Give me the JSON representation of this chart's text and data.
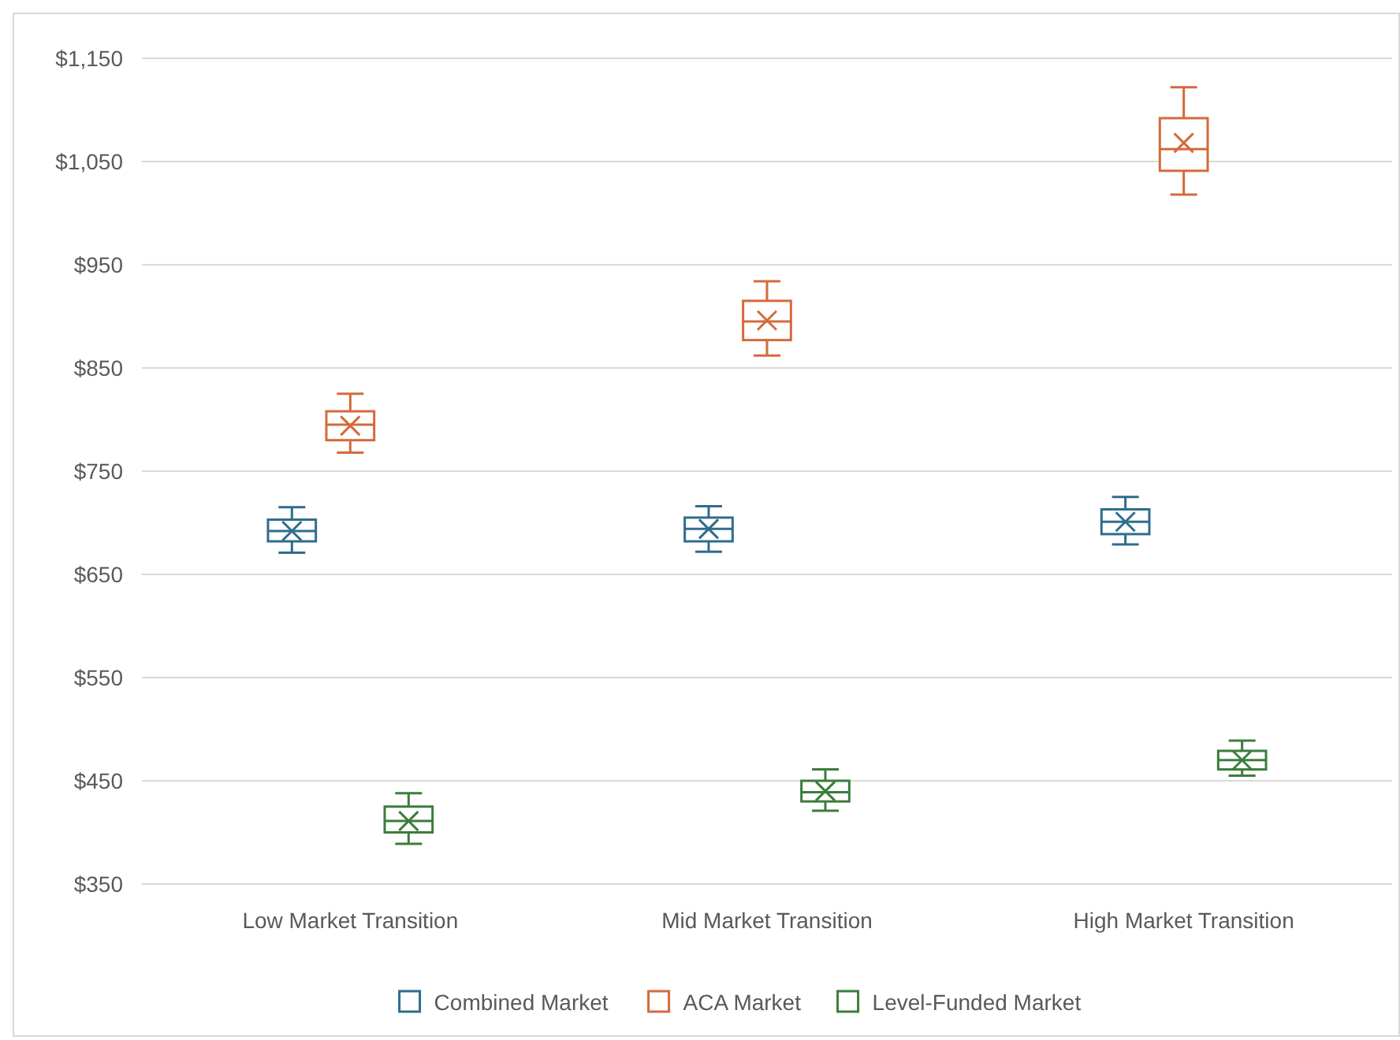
{
  "chart_data": {
    "type": "box",
    "categories": [
      "Low Market Transition",
      "Mid Market Transition",
      "High Market Transition"
    ],
    "ylim": [
      350,
      1150
    ],
    "yticks": [
      {
        "value": 350,
        "label": "$350"
      },
      {
        "value": 450,
        "label": "$450"
      },
      {
        "value": 550,
        "label": "$550"
      },
      {
        "value": 650,
        "label": "$650"
      },
      {
        "value": 750,
        "label": "$750"
      },
      {
        "value": 850,
        "label": "$850"
      },
      {
        "value": 950,
        "label": "$950"
      },
      {
        "value": 1050,
        "label": "$1,050"
      },
      {
        "value": 1150,
        "label": "$1,150"
      }
    ],
    "grid": "y",
    "legend": "bottom",
    "marker": "cross",
    "series": [
      {
        "name": "Combined Market",
        "color": "#2f6d8c",
        "boxes": [
          {
            "low": 671,
            "q1": 682,
            "median": 692,
            "q3": 703,
            "high": 715,
            "mean": 692
          },
          {
            "low": 672,
            "q1": 682,
            "median": 694,
            "q3": 705,
            "high": 716,
            "mean": 694
          },
          {
            "low": 679,
            "q1": 689,
            "median": 701,
            "q3": 713,
            "high": 725,
            "mean": 701
          }
        ]
      },
      {
        "name": "ACA Market",
        "color": "#d46a3c",
        "boxes": [
          {
            "low": 768,
            "q1": 780,
            "median": 795,
            "q3": 808,
            "high": 825,
            "mean": 794
          },
          {
            "low": 862,
            "q1": 877,
            "median": 895,
            "q3": 915,
            "high": 934,
            "mean": 896
          },
          {
            "low": 1018,
            "q1": 1041,
            "median": 1062,
            "q3": 1092,
            "high": 1122,
            "mean": 1068
          }
        ]
      },
      {
        "name": "Level-Funded Market",
        "color": "#3b7d3b",
        "boxes": [
          {
            "low": 389,
            "q1": 400,
            "median": 411,
            "q3": 425,
            "high": 438,
            "mean": 411
          },
          {
            "low": 421,
            "q1": 430,
            "median": 439,
            "q3": 450,
            "high": 461,
            "mean": 440
          },
          {
            "low": 455,
            "q1": 461,
            "median": 470,
            "q3": 479,
            "high": 489,
            "mean": 470
          }
        ]
      }
    ]
  }
}
